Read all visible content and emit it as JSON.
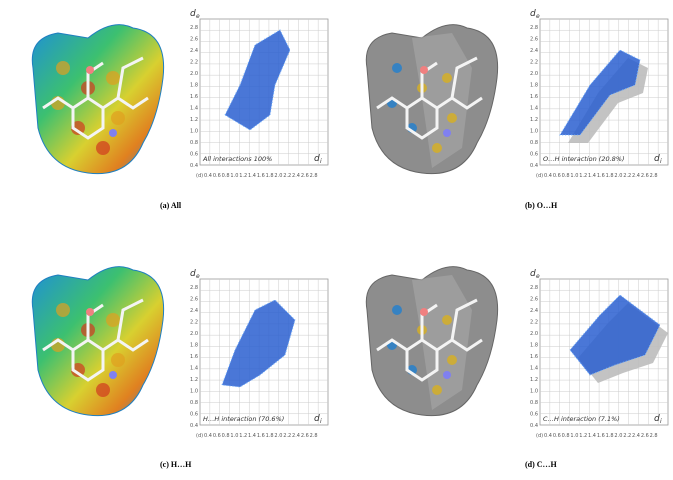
{
  "axes": {
    "y_label": {
      "base": "d",
      "sub": "e"
    },
    "x_label": {
      "base": "d",
      "sub": "i"
    },
    "x_prefix": "(d)",
    "y_ticks": [
      "2.8",
      "2.6",
      "2.4",
      "2.2",
      "2.0",
      "1.8",
      "1.6",
      "1.4",
      "1.2",
      "1.0",
      "0.8",
      "0.6",
      "0.4"
    ],
    "x_ticks": [
      "0.4",
      "0.6",
      "0.8",
      "1.0",
      "1.2",
      "1.4",
      "1.6",
      "1.8",
      "2.0",
      "2.2",
      "2.4",
      "2.6",
      "2.8"
    ]
  },
  "panels": [
    {
      "caption": "(a) All",
      "interaction": "All interactions 100%"
    },
    {
      "caption": "(b) O…H",
      "interaction": "O…H  interaction (20.8%)"
    },
    {
      "caption": "(c) H…H",
      "interaction": "H…H interaction (70.6%)"
    },
    {
      "caption": "(d) C…H",
      "interaction": "C…H interaction (7.1%)"
    }
  ]
}
